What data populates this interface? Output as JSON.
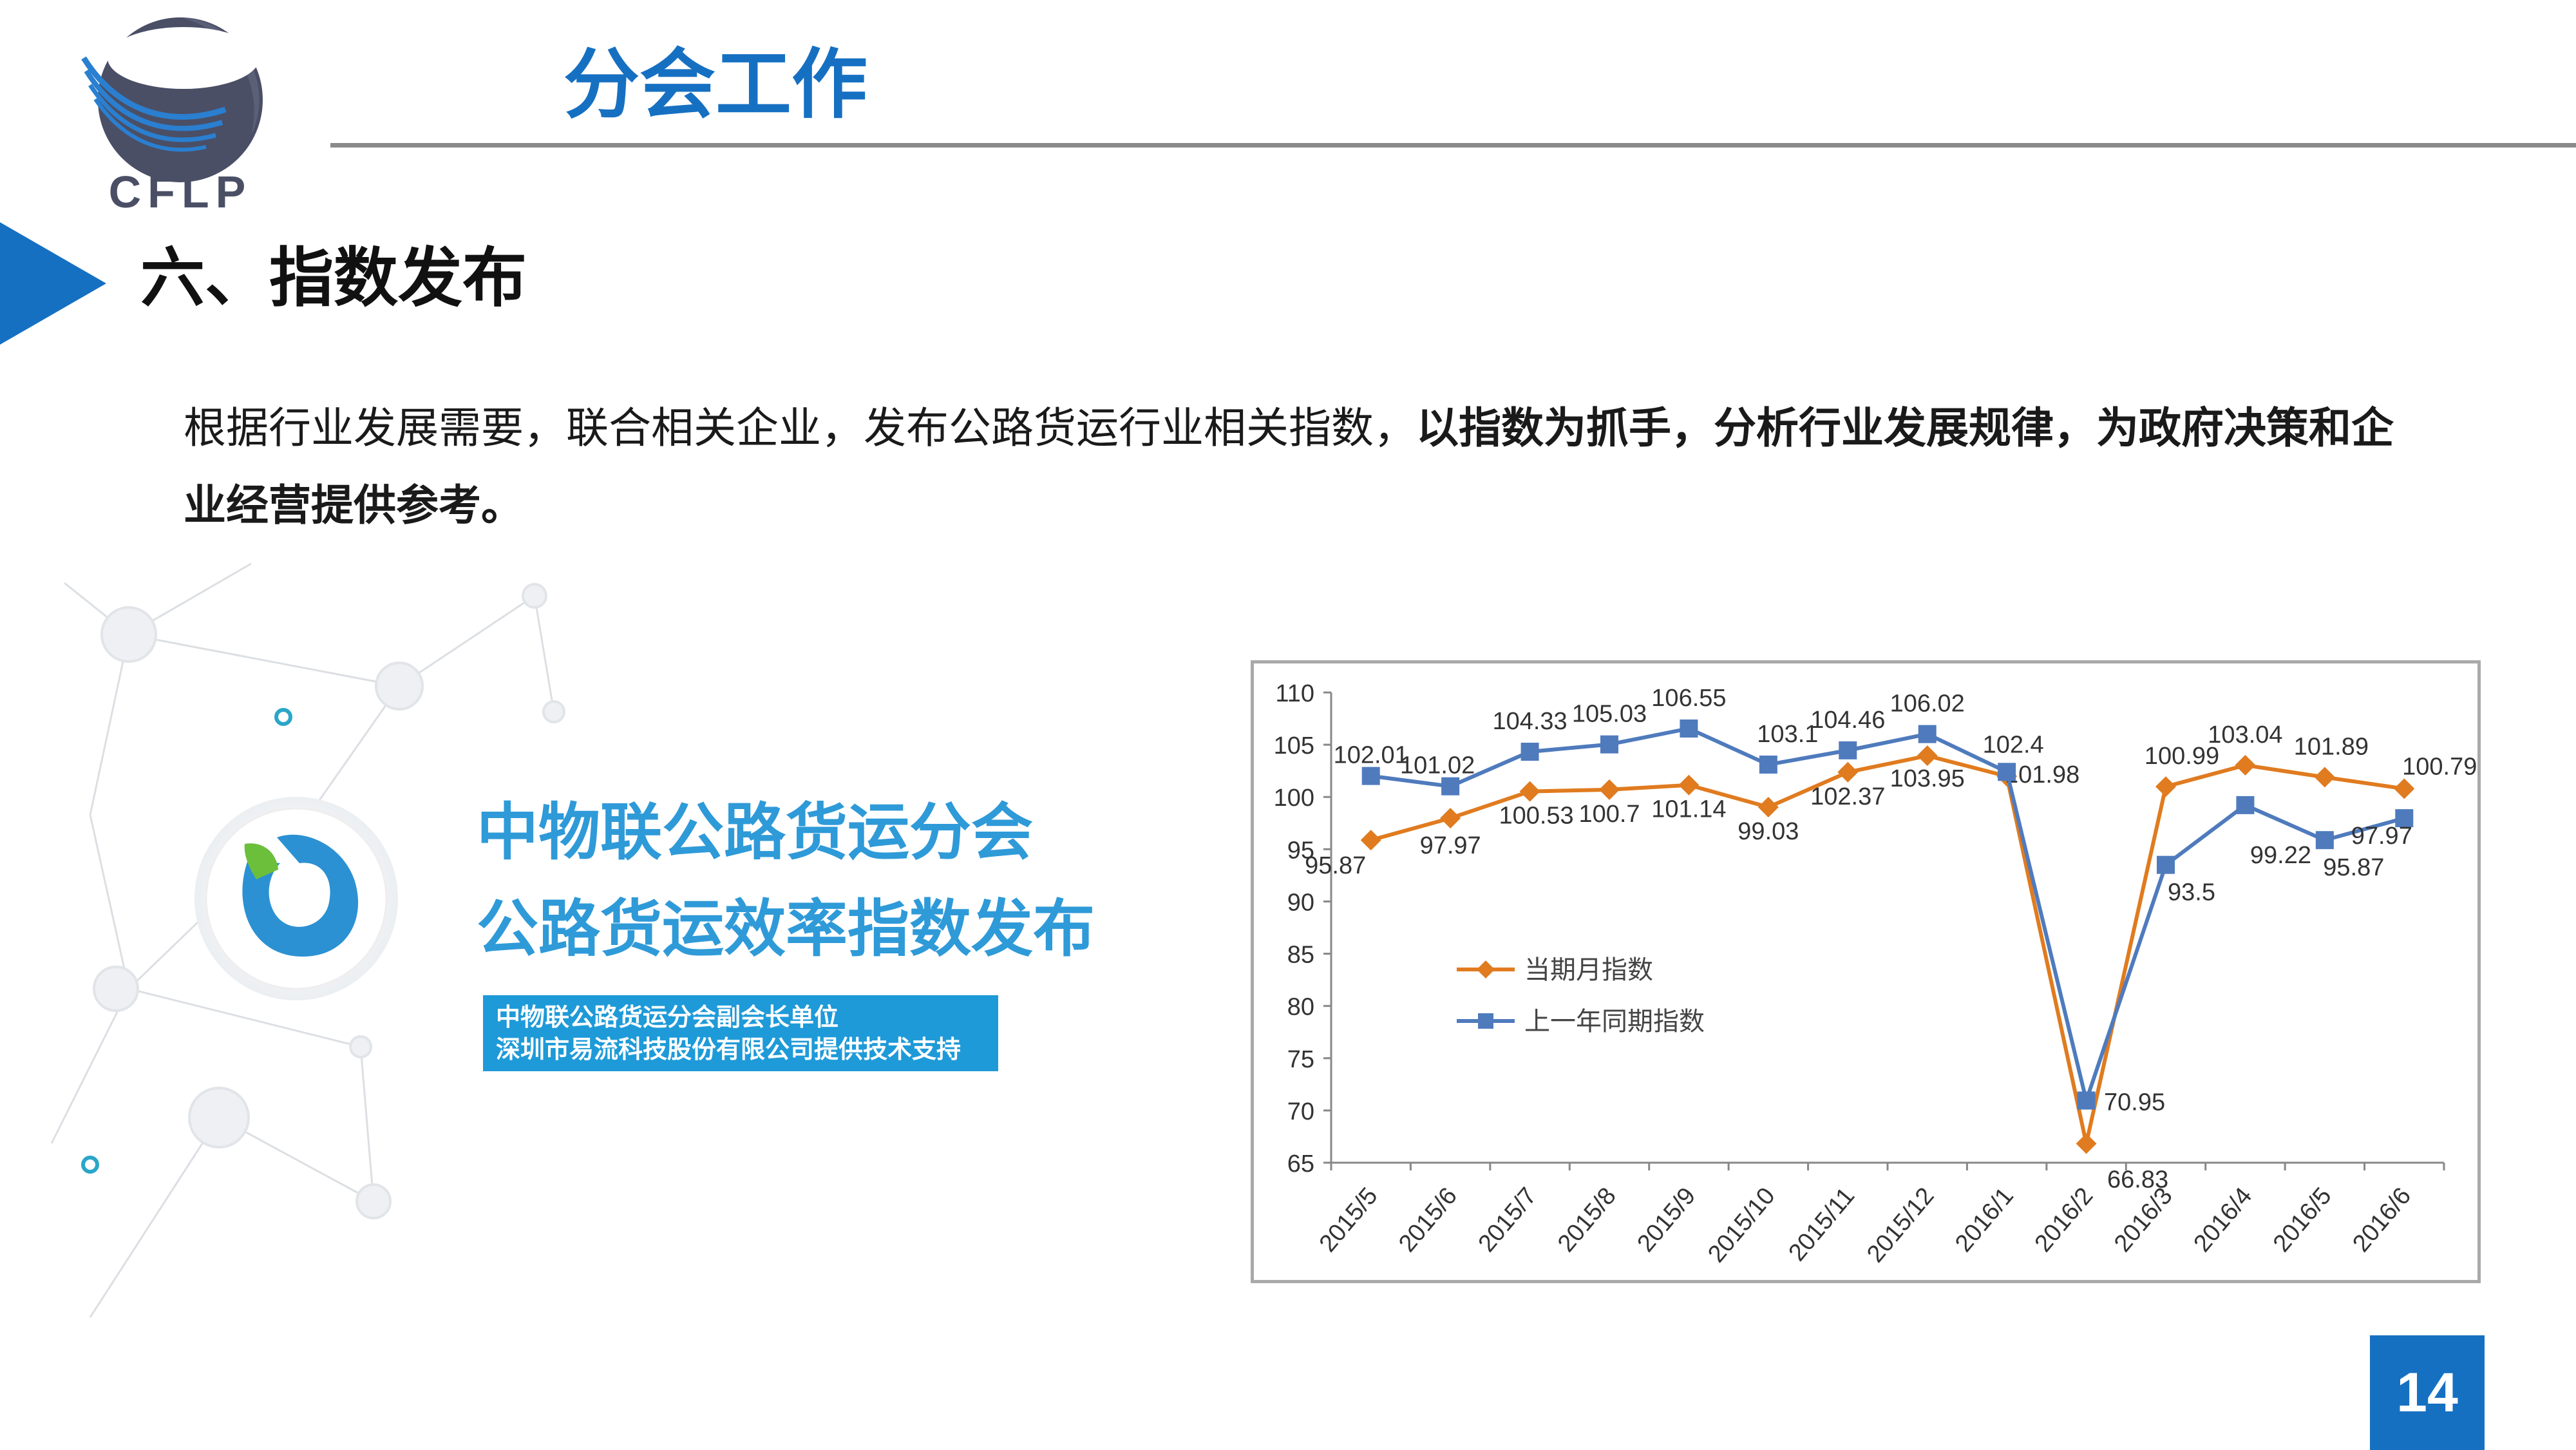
{
  "logo": {
    "text": "CFLP"
  },
  "header": {
    "title": "分会工作"
  },
  "section": {
    "title": "六、指数发布"
  },
  "body": {
    "normal": "根据行业发展需要，联合相关企业，发布公路货运行业相关指数，",
    "bold": "以指数为抓手，分析行业发展规律，为政府决策和企业经营提供参考。"
  },
  "promo": {
    "line1": "中物联公路货运分会",
    "line2": "公路货运效率指数发布",
    "note1": "中物联公路货运分会副会长单位",
    "note2": "深圳市易流科技股份有限公司提供技术支持"
  },
  "page": {
    "number": "14"
  },
  "colors": {
    "accent": "#1670c2",
    "series_current": "#e07b1f",
    "series_prev": "#4f7bbd"
  },
  "chart_data": {
    "type": "line",
    "categories": [
      "2015/5",
      "2015/6",
      "2015/7",
      "2015/8",
      "2015/9",
      "2015/10",
      "2015/11",
      "2015/12",
      "2016/1",
      "2016/2",
      "2016/3",
      "2016/4",
      "2016/5",
      "2016/6"
    ],
    "ylim": [
      65,
      110
    ],
    "yticks": [
      65,
      70,
      75,
      80,
      85,
      90,
      95,
      100,
      105,
      110
    ],
    "grid": false,
    "legend_position": "left",
    "series": [
      {
        "name": "当期月指数",
        "marker": "diamond",
        "color": "#e07b1f",
        "values": [
          95.87,
          97.97,
          100.53,
          100.7,
          101.14,
          99.03,
          102.37,
          103.95,
          101.98,
          66.83,
          100.99,
          103.04,
          101.89,
          100.79
        ],
        "labels": [
          "95.87",
          "97.97",
          "100.53",
          "100.7",
          "101.14",
          "99.03",
          "102.37",
          "103.95",
          "101.98",
          "66.83",
          "100.99",
          "103.04",
          "101.89",
          "100.79"
        ]
      },
      {
        "name": "上一年同期指数",
        "marker": "square",
        "color": "#4f7bbd",
        "values": [
          102.01,
          101.02,
          104.33,
          105.03,
          106.55,
          103.1,
          104.46,
          106.02,
          102.4,
          70.95,
          93.5,
          99.22,
          95.87,
          97.97
        ],
        "labels": [
          "102.01",
          "101.02",
          "104.33",
          "105.03",
          "106.55",
          "103.1",
          "104.46",
          "106.02",
          "102.4",
          "70.95",
          "93.5",
          "99.22",
          "95.87",
          "97.97"
        ]
      }
    ]
  }
}
